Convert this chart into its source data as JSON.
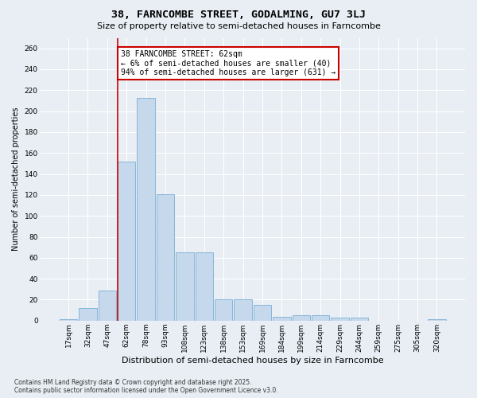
{
  "title": "38, FARNCOMBE STREET, GODALMING, GU7 3LJ",
  "subtitle": "Size of property relative to semi-detached houses in Farncombe",
  "xlabel": "Distribution of semi-detached houses by size in Farncombe",
  "ylabel": "Number of semi-detached properties",
  "categories": [
    "17sqm",
    "32sqm",
    "47sqm",
    "62sqm",
    "78sqm",
    "93sqm",
    "108sqm",
    "123sqm",
    "138sqm",
    "153sqm",
    "169sqm",
    "184sqm",
    "199sqm",
    "214sqm",
    "229sqm",
    "244sqm",
    "259sqm",
    "275sqm",
    "305sqm",
    "320sqm"
  ],
  "values": [
    1,
    12,
    29,
    152,
    213,
    121,
    65,
    65,
    20,
    20,
    15,
    4,
    5,
    5,
    3,
    3,
    0,
    0,
    0,
    1
  ],
  "bar_color": "#c5d8ec",
  "bar_edge_color": "#7aafd4",
  "highlight_x": "62sqm",
  "highlight_line_color": "#cc0000",
  "annotation_text": "38 FARNCOMBE STREET: 62sqm\n← 6% of semi-detached houses are smaller (40)\n94% of semi-detached houses are larger (631) →",
  "annotation_box_color": "#ffffff",
  "annotation_box_edge_color": "#cc0000",
  "footer_line1": "Contains HM Land Registry data © Crown copyright and database right 2025.",
  "footer_line2": "Contains public sector information licensed under the Open Government Licence v3.0.",
  "bg_color": "#e8eef4",
  "grid_color": "#ffffff",
  "ylim": [
    0,
    270
  ],
  "yticks": [
    0,
    20,
    40,
    60,
    80,
    100,
    120,
    140,
    160,
    180,
    200,
    220,
    240,
    260
  ],
  "title_fontsize": 9.5,
  "subtitle_fontsize": 8,
  "xlabel_fontsize": 8,
  "ylabel_fontsize": 7,
  "tick_fontsize": 6.5,
  "annotation_fontsize": 7,
  "footer_fontsize": 5.5
}
